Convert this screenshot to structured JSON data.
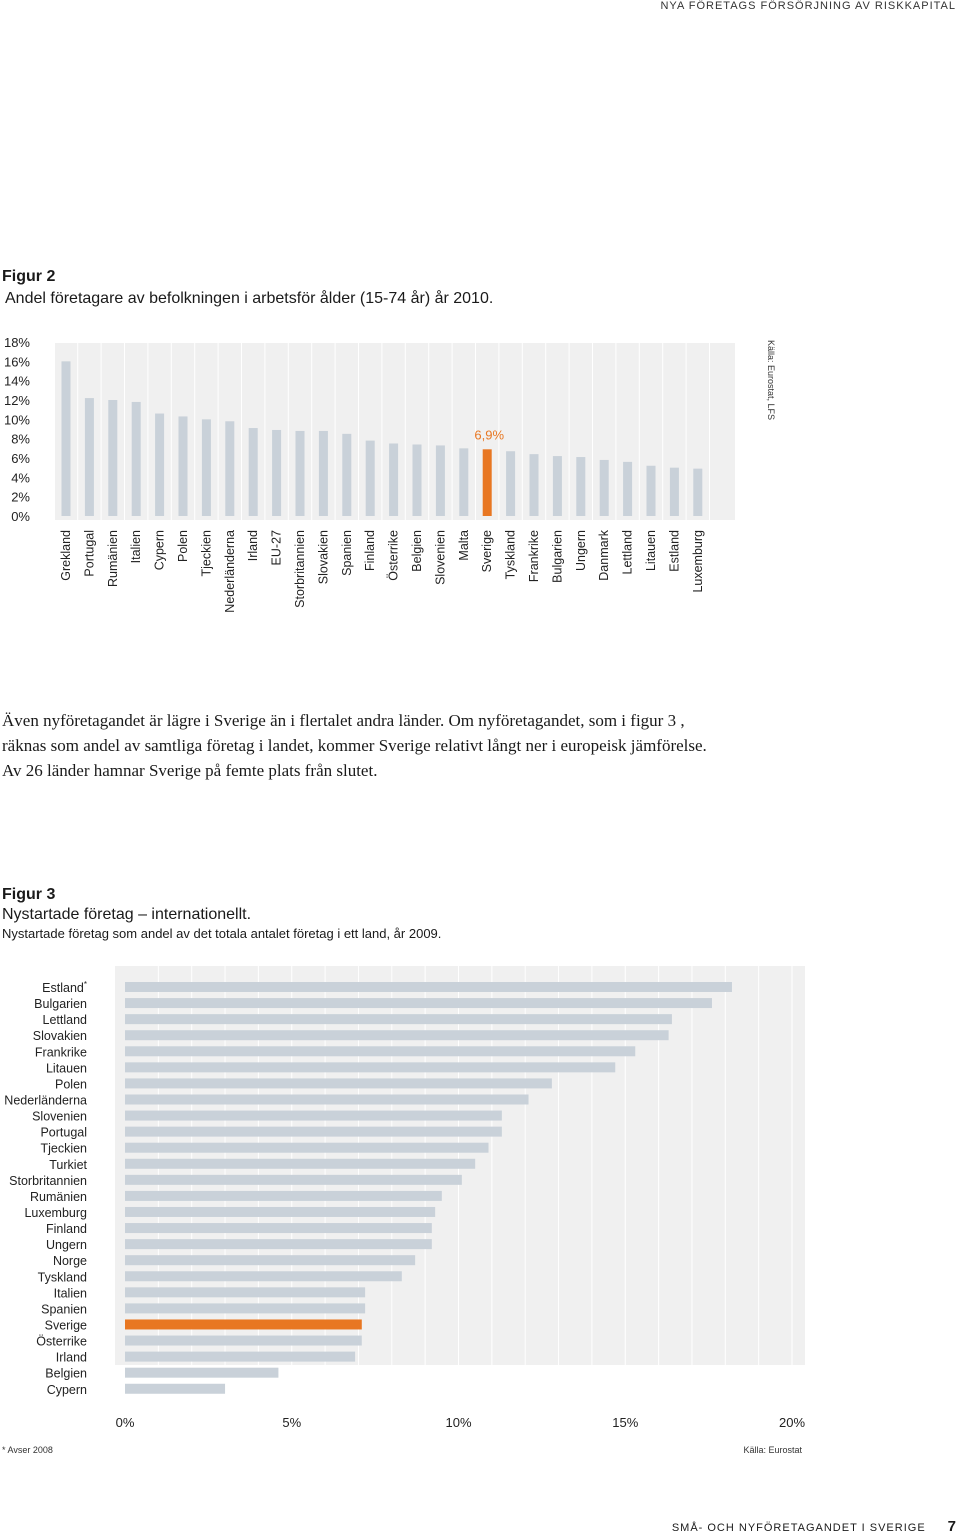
{
  "header": {
    "running_title": "NYA FÖRETAGS FÖRSÖRJNING AV RISKKAPITAL"
  },
  "figure2": {
    "label": "Figur 2",
    "title": "Andel företagare av befolkningen i arbetsför ålder (15-74 år) år 2010.",
    "source": "Källa: Eurostat, LFS"
  },
  "body": {
    "paragraph": "Även nyföretagandet är lägre i Sverige än i flertalet andra länder. Om nyföretagandet, som i figur 3 , räknas som andel av samtliga företag i landet, kommer Sverige relativt långt ner i europeisk jämförelse. Av 26 länder hamnar Sverige på femte plats från slutet."
  },
  "figure3": {
    "label": "Figur 3",
    "title": "Nystartade företag – internationellt.",
    "subtitle": "Nystartade företag som andel av det totala antalet företag i ett land, år 2009.",
    "footnote": "* Avser 2008",
    "source": "Källa: Eurostat"
  },
  "footer": {
    "running_title": "SMÅ- OCH NYFÖRETAGANDET I SVERIGE",
    "page": "7"
  },
  "colors": {
    "bar": "#c9d1d9",
    "highlight": "#e87722",
    "plot_bg": "#f0f0f0",
    "grid": "#ffffff"
  },
  "chart_data": [
    {
      "type": "bar",
      "orientation": "vertical",
      "categories": [
        "Grekland",
        "Portugal",
        "Rumänien",
        "Italien",
        "Cypern",
        "Polen",
        "Tjeckien",
        "Nederländerna",
        "Irland",
        "EU-27",
        "Storbritannien",
        "Slovakien",
        "Spanien",
        "Finland",
        "Österrike",
        "Belgien",
        "Slovenien",
        "Malta",
        "Sverige",
        "Tyskland",
        "Frankrike",
        "Bulgarien",
        "Ungern",
        "Danmark",
        "Lettland",
        "Litauen",
        "Estland",
        "Luxemburg"
      ],
      "values": [
        16.0,
        12.2,
        12.0,
        11.8,
        10.6,
        10.3,
        10.0,
        9.8,
        9.1,
        8.9,
        8.8,
        8.8,
        8.5,
        7.8,
        7.5,
        7.4,
        7.3,
        7.0,
        6.9,
        6.7,
        6.4,
        6.2,
        6.1,
        5.8,
        5.6,
        5.2,
        5.0,
        4.9
      ],
      "highlight": "Sverige",
      "highlight_label": "6,9%",
      "yticks": [
        "0%",
        "2%",
        "4%",
        "6%",
        "8%",
        "10%",
        "12%",
        "14%",
        "16%",
        "18%"
      ],
      "ylim": [
        0,
        18
      ]
    },
    {
      "type": "bar",
      "orientation": "horizontal",
      "categories": [
        "Estland*",
        "Bulgarien",
        "Lettland",
        "Slovakien",
        "Frankrike",
        "Litauen",
        "Polen",
        "Nederländerna",
        "Slovenien",
        "Portugal",
        "Tjeckien",
        "Turkiet",
        "Storbritannien",
        "Rumänien",
        "Luxemburg",
        "Finland",
        "Ungern",
        "Norge",
        "Tyskland",
        "Italien",
        "Spanien",
        "Sverige",
        "Österrike",
        "Irland",
        "Belgien",
        "Cypern"
      ],
      "values": [
        18.2,
        17.6,
        16.4,
        16.3,
        15.3,
        14.7,
        12.8,
        12.1,
        11.3,
        11.3,
        10.9,
        10.5,
        10.1,
        9.5,
        9.3,
        9.2,
        9.2,
        8.7,
        8.3,
        7.2,
        7.2,
        7.1,
        7.1,
        6.9,
        4.6,
        3.0
      ],
      "highlight": "Sverige",
      "xticks": [
        "0%",
        "5%",
        "10%",
        "15%",
        "20%"
      ],
      "xlim": [
        0,
        20
      ]
    }
  ]
}
